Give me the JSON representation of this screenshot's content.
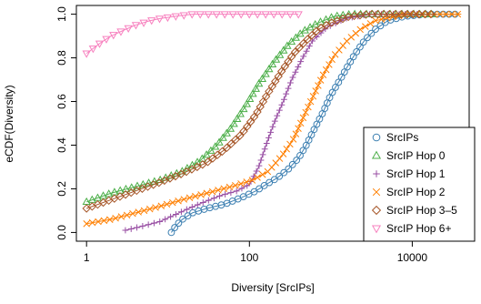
{
  "chart_data": {
    "type": "line",
    "title": "",
    "xlabel": "Diversity [SrcIPs]",
    "ylabel": "eCDF(Diversity)",
    "x_scale": "log10",
    "xlim": [
      0.75,
      50000
    ],
    "ylim": [
      -0.04,
      1.04
    ],
    "x_ticks": [
      1,
      100,
      10000
    ],
    "x_tick_labels": [
      "1",
      "100",
      "10000"
    ],
    "y_ticks": [
      0.0,
      0.2,
      0.4,
      0.6,
      0.8,
      1.0
    ],
    "y_tick_labels": [
      "0.0",
      "0.2",
      "0.4",
      "0.6",
      "0.8",
      "1.0"
    ],
    "grid": false,
    "legend_position": "bottom-right",
    "series": [
      {
        "name": "SrcIPs",
        "color": "#3c7fb1",
        "marker": "circle",
        "points": [
          [
            11,
            0.0
          ],
          [
            12.5,
            0.03
          ],
          [
            15,
            0.06
          ],
          [
            20,
            0.09
          ],
          [
            30,
            0.11
          ],
          [
            50,
            0.13
          ],
          [
            80,
            0.16
          ],
          [
            120,
            0.19
          ],
          [
            160,
            0.22
          ],
          [
            220,
            0.25
          ],
          [
            300,
            0.29
          ],
          [
            400,
            0.34
          ],
          [
            500,
            0.4
          ],
          [
            600,
            0.46
          ],
          [
            800,
            0.55
          ],
          [
            1000,
            0.63
          ],
          [
            1300,
            0.7
          ],
          [
            1600,
            0.76
          ],
          [
            2000,
            0.82
          ],
          [
            2600,
            0.88
          ],
          [
            3500,
            0.93
          ],
          [
            5000,
            0.97
          ],
          [
            8000,
            0.99
          ],
          [
            15000,
            1.0
          ],
          [
            35000,
            1.0
          ]
        ]
      },
      {
        "name": "SrcIP Hop 0",
        "color": "#4daf4a",
        "marker": "triangle-up",
        "points": [
          [
            1,
            0.14
          ],
          [
            2,
            0.18
          ],
          [
            4,
            0.21
          ],
          [
            8,
            0.24
          ],
          [
            15,
            0.28
          ],
          [
            25,
            0.33
          ],
          [
            40,
            0.4
          ],
          [
            60,
            0.48
          ],
          [
            90,
            0.58
          ],
          [
            130,
            0.68
          ],
          [
            200,
            0.78
          ],
          [
            300,
            0.86
          ],
          [
            450,
            0.92
          ],
          [
            700,
            0.96
          ],
          [
            1100,
            0.99
          ],
          [
            1800,
            1.0
          ],
          [
            20000,
            1.0
          ]
        ]
      },
      {
        "name": "SrcIP Hop 1",
        "color": "#984ea3",
        "marker": "plus",
        "points": [
          [
            3,
            0.01
          ],
          [
            5,
            0.03
          ],
          [
            8,
            0.05
          ],
          [
            12,
            0.08
          ],
          [
            18,
            0.11
          ],
          [
            28,
            0.14
          ],
          [
            45,
            0.17
          ],
          [
            70,
            0.19
          ],
          [
            100,
            0.22
          ],
          [
            130,
            0.3
          ],
          [
            160,
            0.4
          ],
          [
            200,
            0.5
          ],
          [
            260,
            0.6
          ],
          [
            330,
            0.7
          ],
          [
            450,
            0.8
          ],
          [
            600,
            0.88
          ],
          [
            900,
            0.94
          ],
          [
            1500,
            0.98
          ],
          [
            3000,
            1.0
          ],
          [
            12000,
            1.0
          ]
        ]
      },
      {
        "name": "SrcIP Hop 2",
        "color": "#ff7f00",
        "marker": "cross",
        "points": [
          [
            1,
            0.04
          ],
          [
            2,
            0.06
          ],
          [
            4,
            0.09
          ],
          [
            8,
            0.12
          ],
          [
            15,
            0.15
          ],
          [
            30,
            0.18
          ],
          [
            60,
            0.21
          ],
          [
            110,
            0.24
          ],
          [
            170,
            0.28
          ],
          [
            250,
            0.35
          ],
          [
            350,
            0.43
          ],
          [
            450,
            0.52
          ],
          [
            600,
            0.62
          ],
          [
            800,
            0.72
          ],
          [
            1100,
            0.81
          ],
          [
            1600,
            0.88
          ],
          [
            2300,
            0.93
          ],
          [
            3500,
            0.97
          ],
          [
            6000,
            0.99
          ],
          [
            10000,
            1.0
          ],
          [
            40000,
            1.0
          ]
        ]
      },
      {
        "name": "SrcIP Hop 3–5",
        "color": "#a65628",
        "marker": "diamond",
        "points": [
          [
            1,
            0.11
          ],
          [
            2,
            0.15
          ],
          [
            4,
            0.19
          ],
          [
            8,
            0.23
          ],
          [
            15,
            0.27
          ],
          [
            30,
            0.32
          ],
          [
            50,
            0.38
          ],
          [
            80,
            0.45
          ],
          [
            120,
            0.54
          ],
          [
            170,
            0.64
          ],
          [
            250,
            0.74
          ],
          [
            350,
            0.82
          ],
          [
            500,
            0.88
          ],
          [
            700,
            0.93
          ],
          [
            1000,
            0.96
          ],
          [
            1700,
            0.99
          ],
          [
            3000,
            1.0
          ],
          [
            20000,
            1.0
          ]
        ]
      },
      {
        "name": "SrcIP Hop 6+",
        "color": "#f781bf",
        "marker": "triangle-down",
        "points": [
          [
            1,
            0.82
          ],
          [
            1.5,
            0.87
          ],
          [
            2,
            0.9
          ],
          [
            3,
            0.93
          ],
          [
            4,
            0.95
          ],
          [
            6,
            0.97
          ],
          [
            8,
            0.98
          ],
          [
            12,
            0.99
          ],
          [
            20,
            1.0
          ],
          [
            40,
            1.0
          ],
          [
            400,
            1.0
          ]
        ]
      }
    ]
  }
}
